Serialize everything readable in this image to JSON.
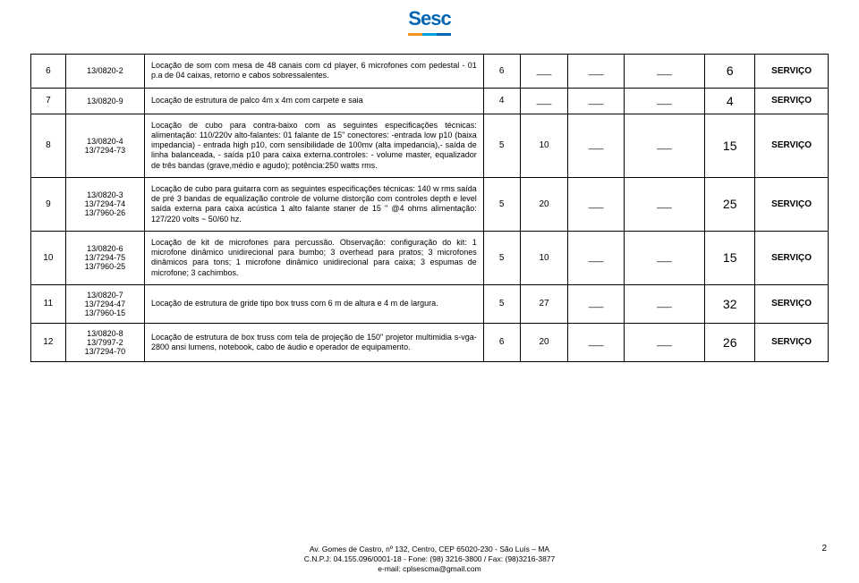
{
  "logo_text": "Sesc",
  "rows": [
    {
      "n": "6",
      "codes": "13/0820-2",
      "desc": "Locação de som com mesa de 48 canais com cd player, 6 microfones com pedestal - 01 p.a de 04 caixas, retorno e cabos sobressalentes.",
      "a": "6",
      "b": "___",
      "c": "___",
      "d": "___",
      "e": "6",
      "srv": "SERVIÇO"
    },
    {
      "n": "7",
      "codes": "13/0820-9",
      "desc": "Locação de estrutura de palco 4m x 4m com carpete e saia",
      "a": "4",
      "b": "___",
      "c": "___",
      "d": "___",
      "e": "4",
      "srv": "SERVIÇO"
    },
    {
      "n": "8",
      "codes": "13/0820-4\n13/7294-73",
      "desc": "Locação de cubo para contra-baixo com as seguintes especificações técnicas: alimentação: 110/220v alto-falantes: 01 falante de 15\" conectores: -entrada low p10 (baixa impedancia) - entrada high p10, com sensibilidade de 100mv (alta impedancia),- saída de linha balanceada, - saída p10 para caixa externa.controles: - volume master, equalizador de três bandas (grave,médio e agudo); potência:250 watts rms.",
      "a": "5",
      "b": "10",
      "c": "___",
      "d": "___",
      "e": "15",
      "srv": "SERVIÇO"
    },
    {
      "n": "9",
      "codes": "13/0820-3\n13/7294-74\n13/7960-26",
      "desc": "Locação de cubo para guitarra com as seguintes especificações técnicas: 140 w rms saída de pré 3 bandas de equalização controle de volume distorção com controles depth e level saída externa para caixa acústica 1 alto falante staner de 15 \" @4 ohms alimentação: 127/220 volts ~ 50/60 hz.",
      "a": "5",
      "b": "20",
      "c": "___",
      "d": "___",
      "e": "25",
      "srv": "SERVIÇO"
    },
    {
      "n": "10",
      "codes": "13/0820-6\n13/7294-75\n13/7960-25",
      "desc": "Locação de kit de microfones para percussão. Observação: configuração do kit: 1 microfone dinâmico unidirecional para bumbo; 3 overhead para pratos; 3 microfones dinâmicos para tons; 1 microfone dinâmico unidirecional para caixa; 3 espumas de microfone; 3 cachimbos.",
      "a": "5",
      "b": "10",
      "c": "___",
      "d": "___",
      "e": "15",
      "srv": "SERVIÇO"
    },
    {
      "n": "11",
      "codes": "13/0820-7\n13/7294-47\n13/7960-15",
      "desc": "Locação de estrutura de gride tipo box truss com 6 m de altura e 4 m de largura.",
      "a": "5",
      "b": "27",
      "c": "___",
      "d": "___",
      "e": "32",
      "srv": "SERVIÇO"
    },
    {
      "n": "12",
      "codes": "13/0820-8\n13/7997-2\n13/7294-70",
      "desc": "Locação de estrutura de box truss com tela de projeção de 150\" projetor multimidia s-vga-2800 ansi lumens, notebook, cabo de áudio e operador de equipamento.",
      "a": "6",
      "b": "20",
      "c": "___",
      "d": "___",
      "e": "26",
      "srv": "SERVIÇO"
    }
  ],
  "footer": {
    "l1": "Av. Gomes de Castro, nº 132, Centro, CEP 65020-230 - São Luís – MA",
    "l2": "C.N.P.J: 04.155.096/0001-18 - Fone: (98) 3216-3800 / Fax: (98)3216-3877",
    "l3": "e-mail: cplsescma@gmail.com"
  },
  "page_number": "2"
}
